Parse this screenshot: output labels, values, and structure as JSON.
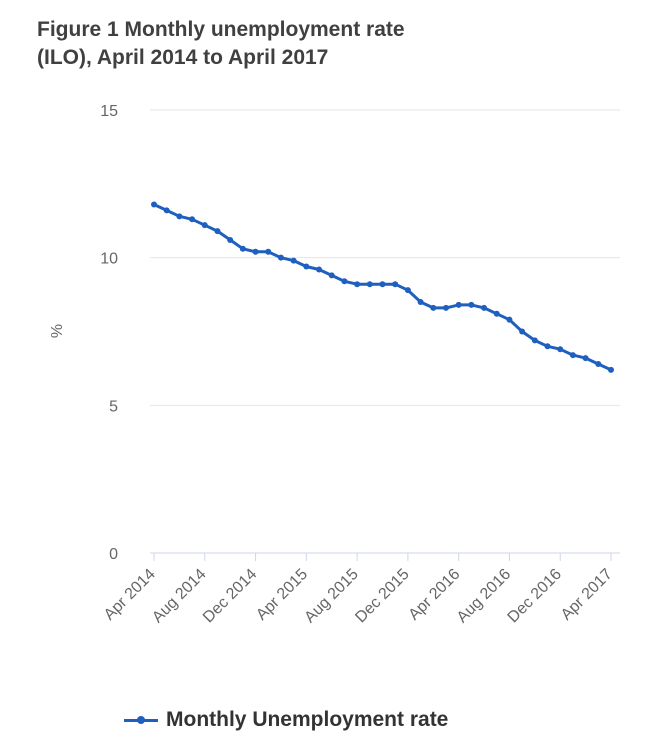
{
  "title": "Figure 1 Monthly unemployment rate\n(ILO), April 2014 to April 2017",
  "colors": {
    "series": "#1f5fbf",
    "grid": "#e6e6e6",
    "axis": "#ccd6eb",
    "text": "#666666"
  },
  "chart_data": {
    "type": "line",
    "title": "Figure 1 Monthly unemployment rate (ILO), April 2014 to April 2017",
    "xlabel": "",
    "ylabel": "%",
    "ylim": [
      0,
      15
    ],
    "yticks": [
      "0",
      "5",
      "10",
      "15"
    ],
    "x_tick_labels": [
      "Apr 2014",
      "Aug 2014",
      "Dec 2014",
      "Apr 2015",
      "Aug 2015",
      "Dec 2015",
      "Apr 2016",
      "Aug 2016",
      "Dec 2016",
      "Apr 2017"
    ],
    "grid": true,
    "legend_position": "bottom",
    "categories": [
      "Apr 2014",
      "May 2014",
      "Jun 2014",
      "Jul 2014",
      "Aug 2014",
      "Sep 2014",
      "Oct 2014",
      "Nov 2014",
      "Dec 2014",
      "Jan 2015",
      "Feb 2015",
      "Mar 2015",
      "Apr 2015",
      "May 2015",
      "Jun 2015",
      "Jul 2015",
      "Aug 2015",
      "Sep 2015",
      "Oct 2015",
      "Nov 2015",
      "Dec 2015",
      "Jan 2016",
      "Feb 2016",
      "Mar 2016",
      "Apr 2016",
      "May 2016",
      "Jun 2016",
      "Jul 2016",
      "Aug 2016",
      "Sep 2016",
      "Oct 2016",
      "Nov 2016",
      "Dec 2016",
      "Jan 2017",
      "Feb 2017",
      "Mar 2017",
      "Apr 2017"
    ],
    "series": [
      {
        "name": "Monthly Unemployment rate",
        "values": [
          11.8,
          11.6,
          11.4,
          11.3,
          11.1,
          10.9,
          10.6,
          10.3,
          10.2,
          10.2,
          10.0,
          9.9,
          9.7,
          9.6,
          9.4,
          9.2,
          9.1,
          9.1,
          9.1,
          9.1,
          8.9,
          8.5,
          8.3,
          8.3,
          8.4,
          8.4,
          8.3,
          8.1,
          7.9,
          7.5,
          7.2,
          7.0,
          6.9,
          6.7,
          6.6,
          6.4,
          6.2
        ]
      }
    ]
  }
}
